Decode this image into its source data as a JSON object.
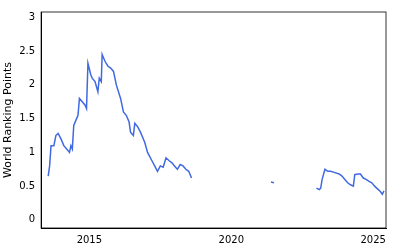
{
  "chart_data": {
    "type": "line",
    "y_label": "World Ranking Points",
    "x": [
      2013.55,
      2013.6,
      2013.65,
      2013.75,
      2013.82,
      2013.9,
      2014.0,
      2014.1,
      2014.2,
      2014.3,
      2014.35,
      2014.4,
      2014.45,
      2014.55,
      2014.6,
      2014.65,
      2014.75,
      2014.85,
      2014.9,
      2014.95,
      2015.05,
      2015.1,
      2015.2,
      2015.3,
      2015.35,
      2015.42,
      2015.45,
      2015.55,
      2015.65,
      2015.75,
      2015.85,
      2015.95,
      2016.1,
      2016.2,
      2016.3,
      2016.4,
      2016.45,
      2016.55,
      2016.6,
      2016.7,
      2016.8,
      2016.95,
      2017.05,
      2017.2,
      2017.3,
      2017.4,
      2017.5,
      2017.6,
      2017.7,
      2017.8,
      2017.9,
      2018.0,
      2018.1,
      2018.2,
      2018.3,
      2018.4,
      2018.5,
      2018.6,
      2019.9,
      2021.4,
      2021.5,
      2022.3,
      2023.0,
      2023.1,
      2023.15,
      2023.2,
      2023.3,
      2023.4,
      2023.5,
      2023.65,
      2023.8,
      2023.9,
      2024.0,
      2024.1,
      2024.2,
      2024.3,
      2024.35,
      2024.45,
      2024.55,
      2024.65,
      2024.75,
      2024.85,
      2024.95,
      2025.05,
      2025.15,
      2025.25,
      2025.32,
      2025.38
    ],
    "series": [
      {
        "name": "World Ranking Points",
        "color": "#4169e1",
        "values": [
          0.65,
          0.8,
          1.1,
          1.1,
          1.25,
          1.28,
          1.2,
          1.1,
          1.05,
          1.0,
          1.1,
          1.05,
          1.4,
          1.5,
          1.55,
          1.8,
          1.75,
          1.7,
          1.65,
          2.32,
          2.15,
          2.1,
          2.05,
          1.9,
          2.1,
          2.05,
          2.45,
          2.35,
          2.28,
          2.25,
          2.2,
          2.0,
          1.8,
          1.6,
          1.55,
          1.45,
          1.3,
          1.25,
          1.43,
          1.38,
          1.3,
          1.15,
          1.0,
          0.88,
          0.8,
          0.72,
          0.8,
          0.78,
          0.92,
          0.88,
          0.85,
          0.8,
          0.75,
          0.82,
          0.8,
          0.75,
          0.72,
          0.62,
          null,
          0.56,
          0.55,
          null,
          0.47,
          0.45,
          0.47,
          0.6,
          0.75,
          0.72,
          0.72,
          0.7,
          0.68,
          0.65,
          0.6,
          0.55,
          0.52,
          0.5,
          0.67,
          0.68,
          0.68,
          0.62,
          0.6,
          0.57,
          0.55,
          0.5,
          0.46,
          0.42,
          0.38,
          0.43
        ]
      }
    ],
    "xlim": [
      2013.3,
      2025.45
    ],
    "xticks": [
      2015,
      2020,
      2025
    ],
    "ylim": [
      -0.12,
      3.08
    ],
    "yticks": [
      0,
      0.5,
      1,
      1.5,
      2,
      2.5,
      3
    ],
    "grid": false
  }
}
